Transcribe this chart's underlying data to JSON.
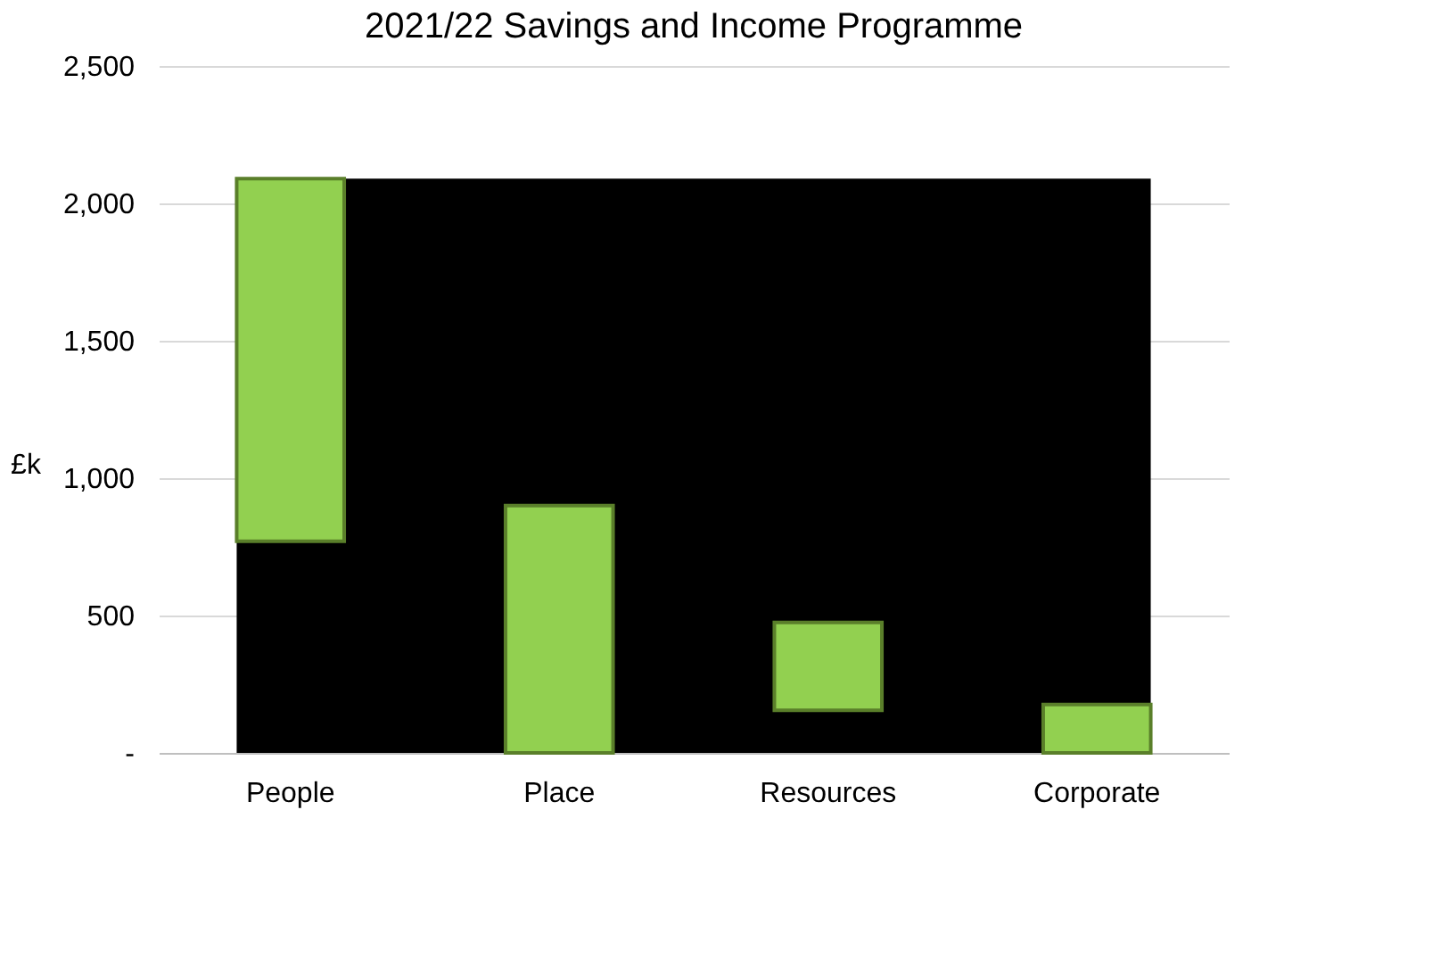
{
  "chart_data": {
    "type": "bar",
    "title": "2021/22 Savings and Income Programme",
    "ylabel": "£k",
    "categories": [
      "People",
      "Place",
      "Resources",
      "Corporate"
    ],
    "values": [
      1320,
      900,
      320,
      176
    ],
    "base": [
      770,
      0,
      155,
      0
    ],
    "color": "#92d050",
    "ylim": [
      0,
      2500
    ],
    "yticks": [
      {
        "value": 0,
        "label": "-"
      },
      {
        "value": 500,
        "label": "500"
      },
      {
        "value": 1000,
        "label": "1,000"
      },
      {
        "value": 1500,
        "label": "1,500"
      },
      {
        "value": 2000,
        "label": "2,000"
      },
      {
        "value": 2500,
        "label": "2,500"
      }
    ],
    "bands": [
      {
        "axis": "y",
        "from": 0,
        "to": 2090,
        "color": "#000000"
      }
    ],
    "grid": "y"
  }
}
